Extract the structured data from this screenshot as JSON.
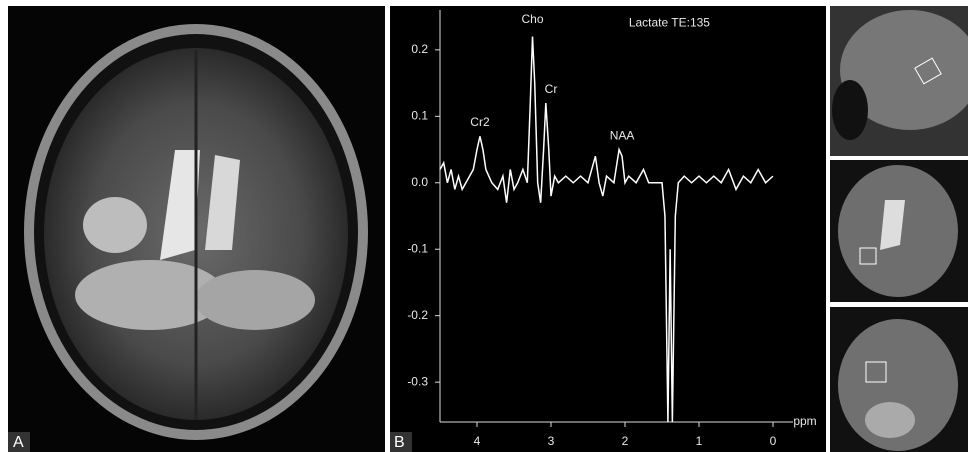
{
  "chart_data": {
    "type": "line",
    "panel_labels": [
      "A",
      "B"
    ],
    "x": [
      4.5,
      4.45,
      4.4,
      4.35,
      4.3,
      4.25,
      4.2,
      4.15,
      4.1,
      4.05,
      4.0,
      3.96,
      3.92,
      3.88,
      3.8,
      3.72,
      3.65,
      3.6,
      3.55,
      3.5,
      3.45,
      3.38,
      3.32,
      3.28,
      3.25,
      3.22,
      3.18,
      3.14,
      3.1,
      3.07,
      3.03,
      3.0,
      2.95,
      2.9,
      2.8,
      2.7,
      2.6,
      2.5,
      2.45,
      2.4,
      2.35,
      2.3,
      2.25,
      2.15,
      2.08,
      2.04,
      2.0,
      1.95,
      1.85,
      1.75,
      1.68,
      1.6,
      1.5,
      1.46,
      1.42,
      1.39,
      1.36,
      1.32,
      1.28,
      1.2,
      1.1,
      1.0,
      0.9,
      0.8,
      0.7,
      0.6,
      0.5,
      0.4,
      0.3,
      0.2,
      0.1,
      0.0
    ],
    "series": [
      {
        "color": "#ffffff",
        "values": [
          0.02,
          0.03,
          0.0,
          0.02,
          -0.01,
          0.01,
          -0.01,
          0.0,
          0.01,
          0.02,
          0.05,
          0.07,
          0.05,
          0.02,
          0.0,
          -0.01,
          0.01,
          -0.03,
          0.02,
          -0.01,
          0.0,
          0.02,
          0.0,
          0.12,
          0.22,
          0.15,
          0.0,
          -0.03,
          0.05,
          0.12,
          0.05,
          -0.02,
          0.01,
          0.0,
          0.01,
          0.0,
          0.01,
          0.0,
          0.02,
          0.04,
          0.0,
          -0.02,
          0.01,
          0.0,
          0.05,
          0.04,
          0.0,
          0.01,
          0.0,
          0.02,
          0.0,
          0.0,
          0.0,
          -0.05,
          -0.36,
          -0.1,
          -0.36,
          -0.05,
          0.0,
          0.01,
          0.0,
          0.01,
          0.0,
          0.01,
          0.0,
          0.02,
          -0.01,
          0.01,
          0.0,
          0.02,
          0.0,
          0.01
        ]
      }
    ],
    "xlim": [
      4.5,
      0
    ],
    "xticks": [
      4,
      3,
      2,
      1,
      0
    ],
    "x_label": "ppm",
    "ylim": [
      -0.36,
      0.26
    ],
    "yticks": [
      0.2,
      0.1,
      {
        "value": 0,
        "label": "0.0"
      },
      -0.1,
      -0.2,
      -0.3
    ],
    "annotations": [
      {
        "text": "Cho",
        "x": 3.25,
        "y": 0.245
      },
      {
        "text": "Cr",
        "x": 3.0,
        "y": 0.14
      },
      {
        "text": "Cr2",
        "x": 3.96,
        "y": 0.09
      },
      {
        "text": "NAA",
        "x": 2.04,
        "y": 0.07
      },
      {
        "text": "Lactate TE:135",
        "x": 1.4,
        "y": 0.24
      }
    ]
  }
}
